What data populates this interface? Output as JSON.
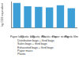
{
  "chart_data": {
    "type": "bar",
    "y_label": "kg CO2 equivalent",
    "categories": [
      "Paper bag",
      "Plastic bag",
      "Plastic thin",
      "Plastic reus.",
      "Paper strong",
      "Plastic film"
    ],
    "values": [
      95,
      82,
      80,
      78,
      86,
      75
    ],
    "color": "#3d9fd6",
    "ylim": [
      0,
      100
    ],
    "yticks": [
      0,
      25,
      50,
      75,
      100
    ],
    "grid": false,
    "tick_labels": "x",
    "annotations": [
      "Distribution bags + third bags",
      "Sales bags + third bags",
      "Exhausted bags + third bags",
      "Paper mass",
      "Plastic"
    ]
  }
}
